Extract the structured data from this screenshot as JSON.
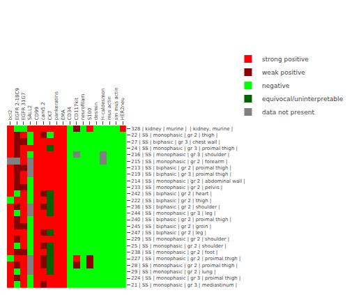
{
  "chart_data": {
    "type": "heatmap",
    "categories": [
      "bcl2",
      "EGFR 2-18C9",
      "EGFR 31G7",
      "SALL2",
      "CD99",
      "cam5.2",
      "CK7",
      "pankeratins",
      "EMA",
      "CD34",
      "CD117kit",
      "neurofilam",
      "S100",
      "desmin",
      "H-caldesmon",
      "mus actin",
      "sm mus actin",
      "HER2neu"
    ],
    "rows": [
      "328 | kidney | murine |  | kidney, murine |",
      "22 | SS | monophasic | gr 2 | thigh |",
      "27 | SS | biphasic | gr 3 | chest wall |",
      "24 | SS | monophasic | gr 3 | proimal thigh |",
      "216 | SS | monophasic | gr 3 | shoulder |",
      "215 | SS | monophasic | gr 2 | forearm |",
      "213 | SS | biphasic | gr 2 | proimal thigh |",
      "219 | SS | biphasic | gr 3 | proimal thigh |",
      "214 | SS | monophasic | gr 2 | abdominal wall |",
      "233 | SS | monophasic | gr 2 | pelvis |",
      "242 | SS | biphasic | gr 2 | heart |",
      "222 | SS | biphasic | gr 2 | thigh |",
      "236 | SS | biphasic | gr 2 | shoulder |",
      "244 | SS | monophasic | gr 3 | leg |",
      "240 | SS | biphasic | gr 2 | proimal thigh |",
      "245 | SS | biphasic | gr 2 | groin |",
      "247 | SS | biphasic | gr 2 | leg |",
      "229 | SS | monophasic | gr 2 | shoulder |",
      "25 | SS | monophasic | gr 2 | shoulder |",
      "238 | SS | monophasic | gr 2 | foot |",
      "227 | SS | monophasic | gr 2 | proimal thigh |",
      "28 | SS | monophasic | gr 2 | proimal thigh |",
      "29 | SS | monophasic | gr 2 | lung |",
      "224 | SS | monophasic | gr 3 | proimal thigh |",
      "21 | SS | monophasic | gr 3 | mediastinum |"
    ],
    "cells": [
      [
        2,
        0,
        0,
        2,
        2,
        2,
        2,
        2,
        2,
        0,
        1,
        0,
        2,
        0,
        0,
        0,
        0,
        2
      ],
      [
        2,
        1,
        2,
        0,
        2,
        1,
        0,
        2,
        2,
        0,
        0,
        0,
        0,
        0,
        0,
        0,
        0,
        0
      ],
      [
        2,
        1,
        1,
        0,
        2,
        2,
        2,
        2,
        2,
        0,
        0,
        0,
        0,
        0,
        0,
        0,
        0,
        0
      ],
      [
        2,
        1,
        2,
        2,
        2,
        2,
        3,
        2,
        2,
        0,
        0,
        0,
        0,
        0,
        0,
        0,
        0,
        0
      ],
      [
        2,
        1,
        2,
        0,
        2,
        2,
        2,
        2,
        2,
        0,
        4,
        0,
        0,
        0,
        4,
        0,
        0,
        0
      ],
      [
        4,
        4,
        2,
        4,
        2,
        2,
        2,
        2,
        2,
        0,
        0,
        0,
        0,
        0,
        4,
        0,
        0,
        0
      ],
      [
        2,
        1,
        1,
        4,
        2,
        2,
        2,
        2,
        2,
        0,
        0,
        0,
        0,
        0,
        0,
        0,
        0,
        0
      ],
      [
        2,
        1,
        2,
        4,
        2,
        2,
        2,
        2,
        2,
        0,
        0,
        0,
        0,
        0,
        0,
        0,
        0,
        0
      ],
      [
        2,
        1,
        2,
        0,
        2,
        2,
        2,
        2,
        2,
        0,
        0,
        0,
        0,
        0,
        0,
        0,
        0,
        0
      ],
      [
        2,
        1,
        1,
        0,
        2,
        2,
        2,
        2,
        2,
        0,
        0,
        0,
        0,
        0,
        0,
        0,
        0,
        0
      ],
      [
        2,
        0,
        2,
        0,
        2,
        1,
        3,
        2,
        2,
        0,
        0,
        0,
        0,
        0,
        0,
        0,
        0,
        0
      ],
      [
        0,
        2,
        2,
        0,
        2,
        2,
        3,
        2,
        2,
        0,
        0,
        0,
        0,
        0,
        0,
        0,
        0,
        0
      ],
      [
        2,
        1,
        2,
        4,
        2,
        1,
        3,
        2,
        2,
        0,
        0,
        0,
        0,
        0,
        0,
        0,
        0,
        0
      ],
      [
        2,
        0,
        2,
        4,
        2,
        2,
        3,
        2,
        2,
        0,
        0,
        0,
        0,
        0,
        0,
        0,
        0,
        0
      ],
      [
        2,
        1,
        2,
        0,
        2,
        2,
        2,
        2,
        2,
        0,
        0,
        0,
        0,
        0,
        0,
        0,
        0,
        0
      ],
      [
        2,
        1,
        1,
        0,
        2,
        2,
        2,
        2,
        2,
        0,
        0,
        0,
        0,
        0,
        0,
        0,
        0,
        0
      ],
      [
        2,
        2,
        2,
        0,
        2,
        1,
        3,
        2,
        2,
        0,
        0,
        0,
        0,
        0,
        0,
        0,
        0,
        0
      ],
      [
        2,
        1,
        2,
        0,
        2,
        2,
        2,
        2,
        2,
        0,
        0,
        0,
        0,
        0,
        0,
        0,
        0,
        0
      ],
      [
        2,
        0,
        2,
        0,
        2,
        1,
        3,
        2,
        2,
        0,
        0,
        0,
        0,
        0,
        0,
        0,
        0,
        0
      ],
      [
        2,
        1,
        1,
        0,
        2,
        2,
        3,
        2,
        2,
        0,
        0,
        0,
        0,
        0,
        0,
        0,
        0,
        0
      ],
      [
        0,
        2,
        2,
        4,
        2,
        1,
        3,
        2,
        2,
        0,
        2,
        0,
        1,
        0,
        0,
        0,
        0,
        0
      ],
      [
        2,
        1,
        2,
        4,
        2,
        1,
        3,
        2,
        2,
        0,
        1,
        0,
        1,
        0,
        0,
        0,
        0,
        0
      ],
      [
        2,
        0,
        2,
        4,
        2,
        2,
        3,
        2,
        2,
        0,
        0,
        0,
        0,
        0,
        0,
        0,
        0,
        0
      ],
      [
        2,
        1,
        2,
        0,
        2,
        2,
        2,
        2,
        2,
        0,
        0,
        0,
        0,
        0,
        0,
        0,
        0,
        0
      ],
      [
        2,
        0,
        2,
        0,
        2,
        1,
        2,
        2,
        2,
        0,
        0,
        0,
        0,
        0,
        0,
        0,
        0,
        0
      ]
    ],
    "series": [
      {
        "name": "strong positive",
        "color": "#FF0000",
        "value": 2
      },
      {
        "name": "weak positive",
        "color": "#8B0000",
        "value": 1
      },
      {
        "name": "negative",
        "color": "#00FF00",
        "value": 0
      },
      {
        "name": "equivocal/uninterpretable",
        "color": "#006400",
        "value": 3
      },
      {
        "name": "data not present",
        "color": "#808080",
        "value": 4
      }
    ],
    "legend": "upper right",
    "grid": false
  }
}
